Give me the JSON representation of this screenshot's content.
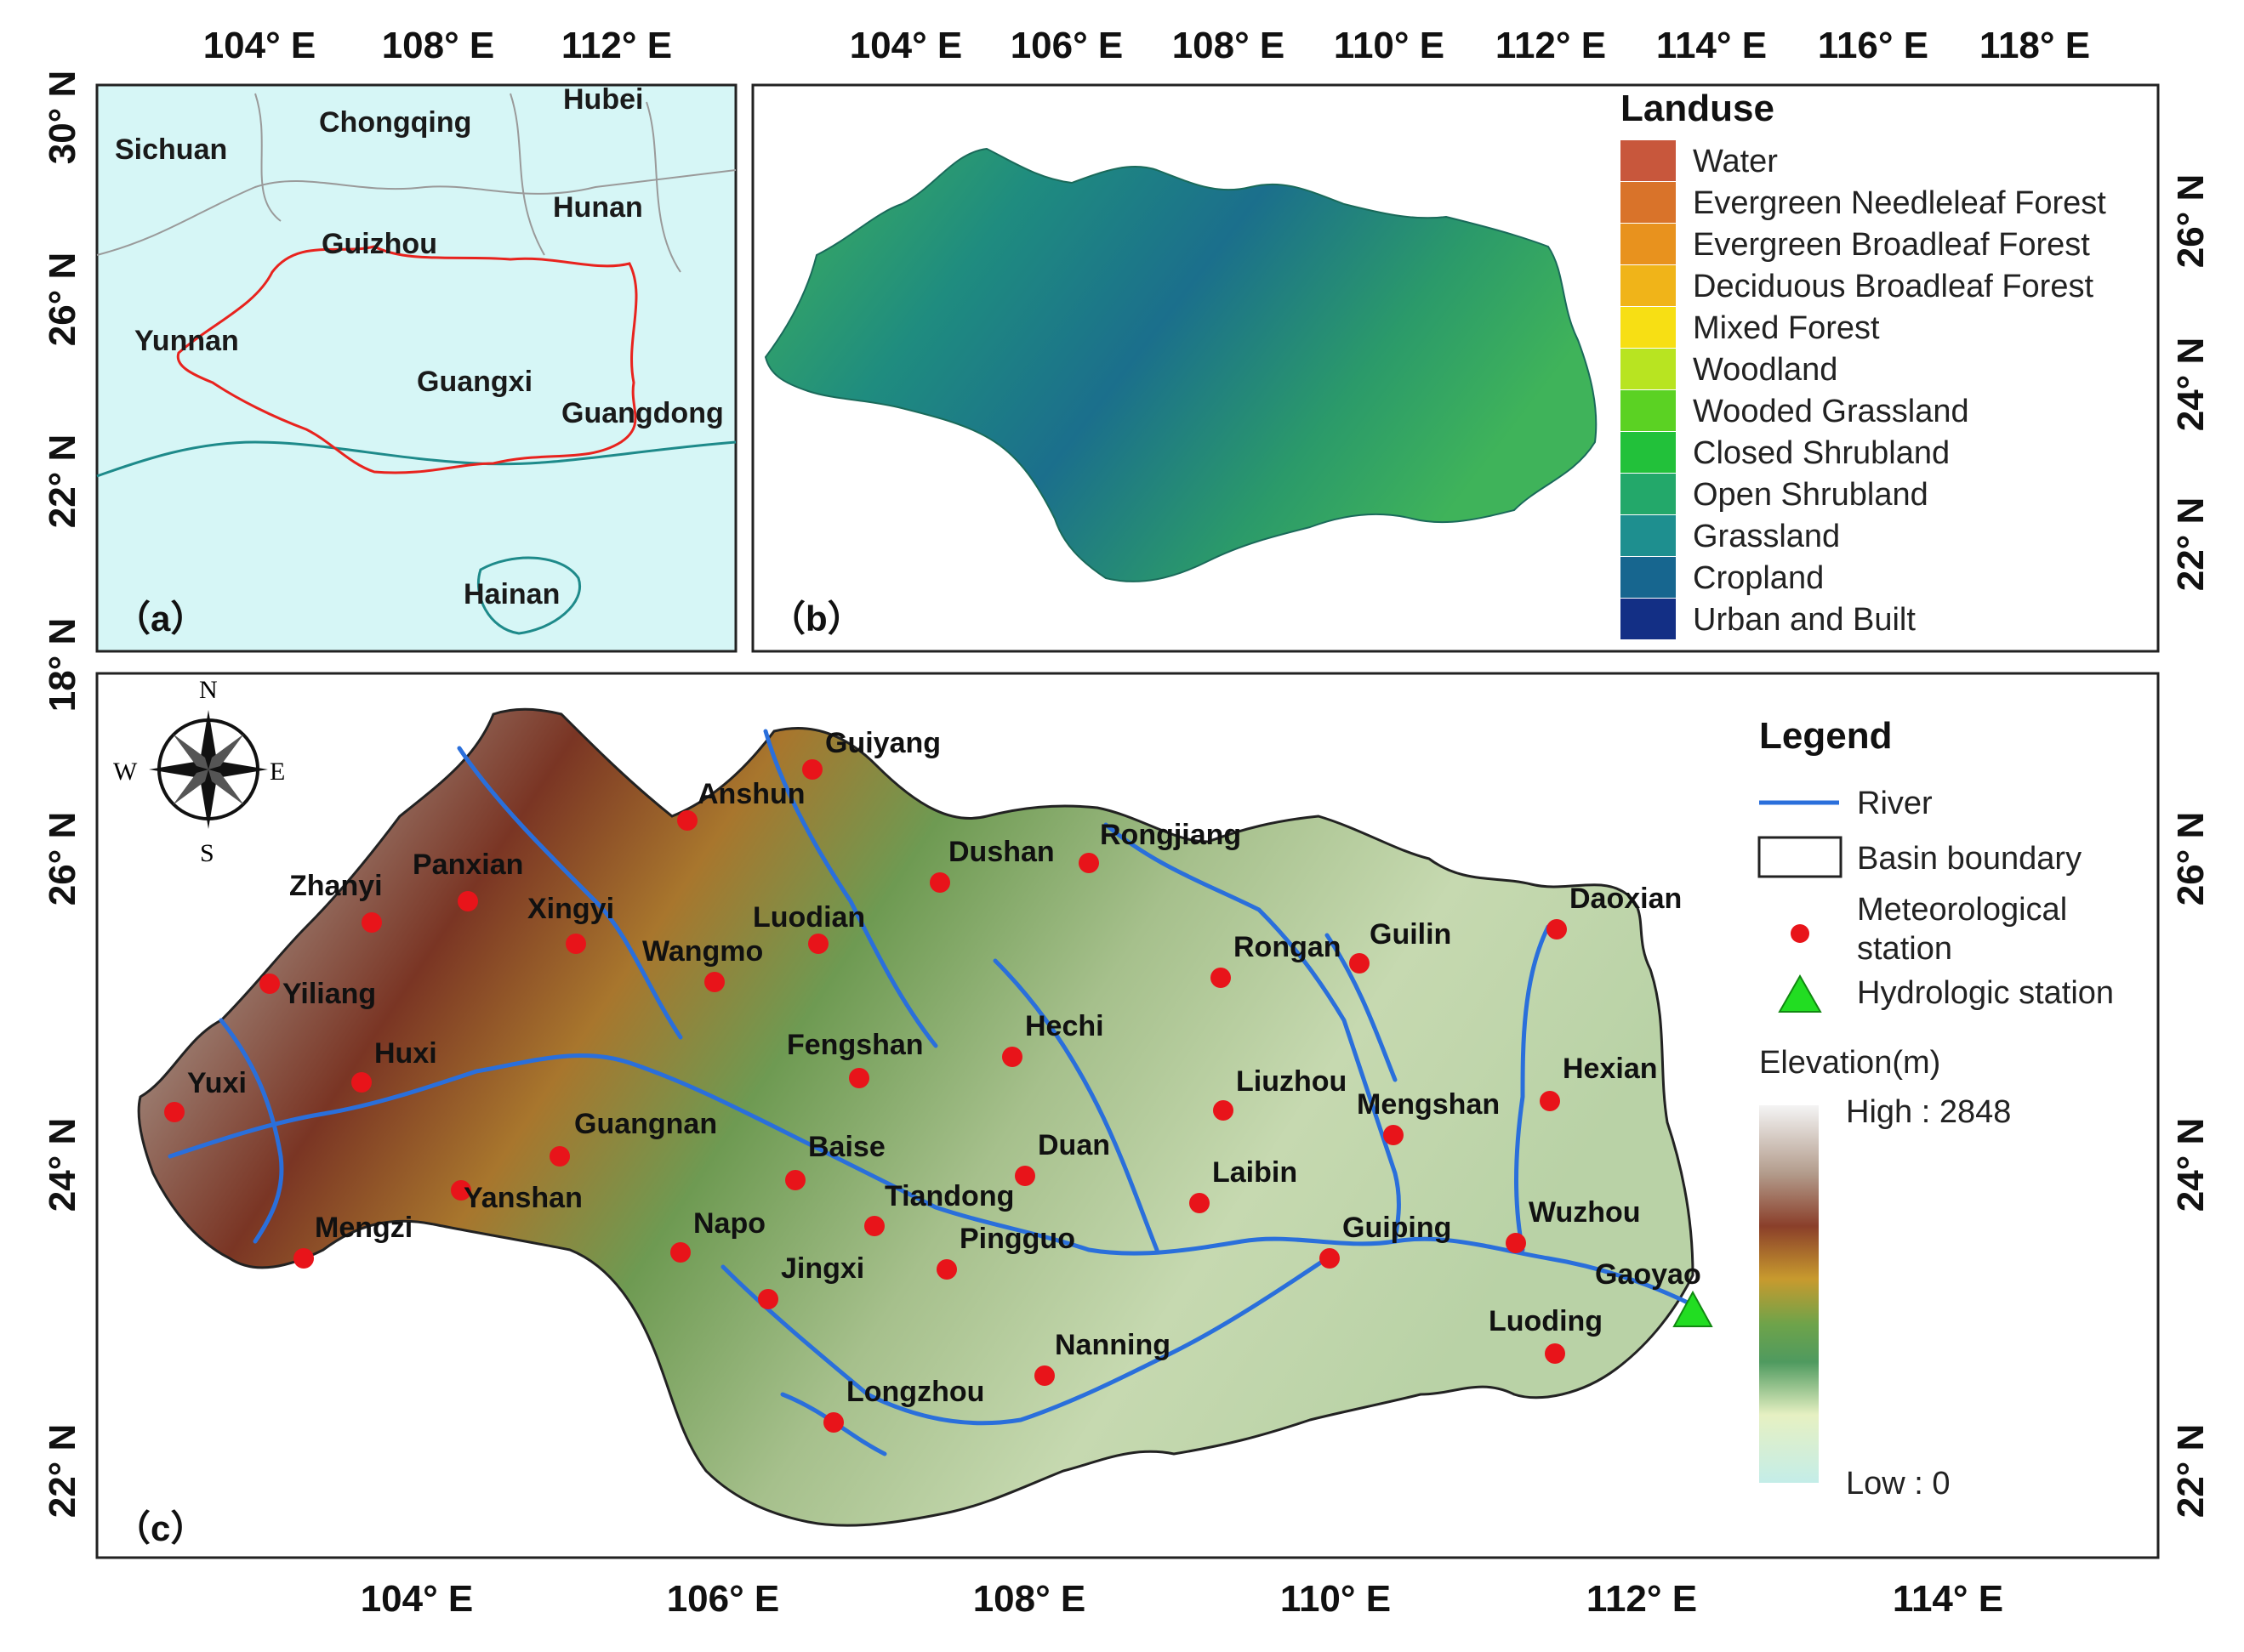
{
  "panels": {
    "a": {
      "tag": "（a）",
      "top_ticks": [
        "104° E",
        "108° E",
        "112° E"
      ],
      "left_ticks": [
        "30° N",
        "26° N",
        "22° N",
        "18° N"
      ],
      "provinces": [
        "Sichuan",
        "Chongqing",
        "Hubei",
        "Hunan",
        "Guizhou",
        "Yunnan",
        "Guangxi",
        "Guangdong",
        "Hainan"
      ]
    },
    "b": {
      "tag": "（b）",
      "top_ticks": [
        "104° E",
        "106° E",
        "108° E",
        "110° E",
        "112° E",
        "114° E",
        "116° E",
        "118° E"
      ],
      "right_ticks": [
        "26° N",
        "24° N",
        "22° N"
      ],
      "legend_title": "Landuse",
      "classes": [
        {
          "label": "Water",
          "color": "#c8573c"
        },
        {
          "label": "Evergreen Needleleaf Forest",
          "color": "#d9732a"
        },
        {
          "label": "Evergreen Broadleaf Forest",
          "color": "#e8921e"
        },
        {
          "label": "Deciduous Broadleaf Forest",
          "color": "#f0b419"
        },
        {
          "label": "Mixed Forest",
          "color": "#f7df14"
        },
        {
          "label": "Woodland",
          "color": "#b8e421"
        },
        {
          "label": "Wooded Grassland",
          "color": "#5bd223"
        },
        {
          "label": "Closed Shrubland",
          "color": "#22c13a"
        },
        {
          "label": "Open Shrubland",
          "color": "#23a86a"
        },
        {
          "label": "Grassland",
          "color": "#1e8f8f"
        },
        {
          "label": "Cropland",
          "color": "#17668f"
        },
        {
          "label": "Urban and Built",
          "color": "#132f85"
        }
      ]
    },
    "c": {
      "tag": "（c）",
      "bottom_ticks": [
        "104° E",
        "106° E",
        "108° E",
        "110° E",
        "112° E",
        "114° E"
      ],
      "left_ticks": [
        "26° N",
        "24° N",
        "22° N"
      ],
      "right_ticks": [
        "26° N",
        "24° N",
        "22° N"
      ],
      "compass": {
        "n": "N",
        "s": "S",
        "e": "E",
        "w": "W"
      },
      "legend": {
        "title": "Legend",
        "river": "River",
        "basin": "Basin boundary",
        "met_line1": "Meteorological",
        "met_line2": "station",
        "hydro": "Hydrologic station",
        "elev_title": "Elevation(m)",
        "high": "High : 2848",
        "low": "Low : 0"
      },
      "colors": {
        "river": "#2a6fdb",
        "station": "#e8141a",
        "hydro": "#22dd22"
      },
      "stations": [
        "Guiyang",
        "Anshun",
        "Panxian",
        "Zhanyi",
        "Xingyi",
        "Wangmo",
        "Luodian",
        "Dushan",
        "Rongjiang",
        "Rongan",
        "Guilin",
        "Daoxian",
        "Yiliang",
        "Huxi",
        "Yuxi",
        "Fengshan",
        "Hechi",
        "Liuzhou",
        "Mengshan",
        "Hexian",
        "Guangnan",
        "Baise",
        "Duan",
        "Laibin",
        "Yanshan",
        "Mengzi",
        "Napo",
        "Tiandong",
        "Pingguo",
        "Guiping",
        "Wuzhou",
        "Jingxi",
        "Gaoyao",
        "Luoding",
        "Nanning",
        "Longzhou"
      ]
    }
  }
}
